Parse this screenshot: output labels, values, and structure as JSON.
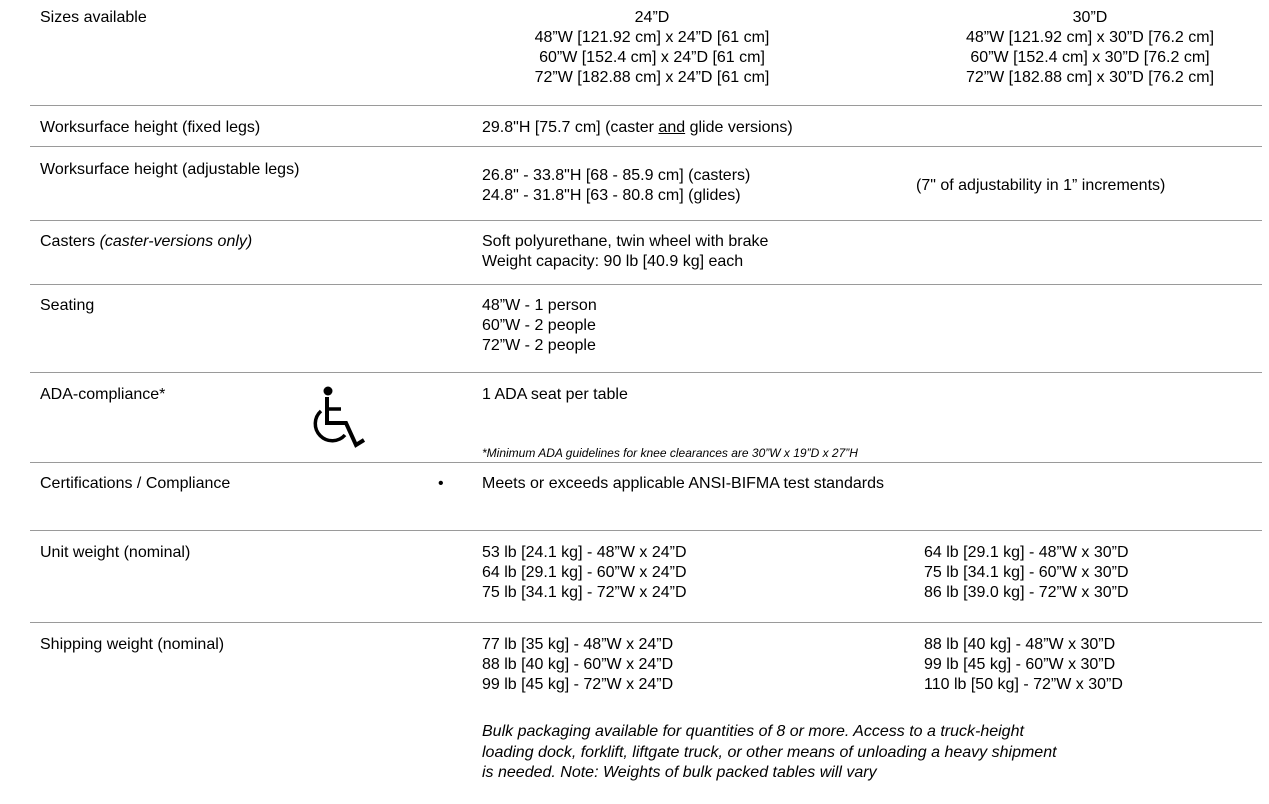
{
  "sizes": {
    "label": "Sizes available",
    "col24_header": "24”D",
    "col30_header": "30”D",
    "col24": [
      "48”W [121.92 cm] x 24”D [61 cm]",
      "60”W [152.4 cm] x 24”D [61 cm]",
      "72”W [182.88 cm] x 24”D [61 cm]"
    ],
    "col30": [
      "48”W [121.92 cm] x 30”D [76.2 cm]",
      "60”W [152.4 cm] x 30”D [76.2 cm]",
      "72”W [182.88 cm] x 30”D [76.2 cm]"
    ]
  },
  "fixed": {
    "label": "Worksurface height (fixed legs)",
    "value_pre": "29.8\"H [75.7 cm] (caster ",
    "value_underline": "and",
    "value_post": " glide versions)"
  },
  "adjustable": {
    "label": "Worksurface height (adjustable legs)",
    "lines": [
      "26.8\" - 33.8\"H [68 - 85.9 cm] (casters)",
      "24.8\" - 31.8\"H [63 - 80.8 cm] (glides)"
    ],
    "note": "(7\" of adjustability in 1” increments)"
  },
  "casters": {
    "label": "Casters",
    "label_note": "(caster-versions only)",
    "lines": [
      "Soft polyurethane, twin wheel with brake",
      "Weight capacity: 90 lb [40.9 kg] each"
    ]
  },
  "seating": {
    "label": "Seating",
    "lines": [
      "48”W - 1 person",
      "60”W - 2 people",
      "72”W - 2 people"
    ]
  },
  "ada": {
    "label": "ADA-compliance*",
    "icon": "wheelchair-icon",
    "value": "1 ADA seat per table",
    "footnote": "*Minimum ADA guidelines for knee clearances are 30”W x 19”D x 27”H"
  },
  "certifications": {
    "label": "Certifications / Compliance",
    "bullet": "•",
    "value": "Meets or exceeds applicable ANSI-BIFMA test standards"
  },
  "unit_weight": {
    "label": "Unit weight (nominal)",
    "col24": [
      "53 lb [24.1 kg] - 48”W x 24”D",
      "64 lb [29.1 kg] - 60”W x 24”D",
      "75 lb [34.1 kg] - 72”W x 24”D"
    ],
    "col30": [
      "64 lb [29.1 kg] - 48”W x 30”D",
      "75 lb [34.1 kg] - 60”W x 30”D",
      "86 lb [39.0 kg] - 72”W x 30”D"
    ]
  },
  "shipping_weight": {
    "label": "Shipping weight (nominal)",
    "col24": [
      "77 lb [35 kg] - 48”W x 24”D",
      "88 lb [40 kg] - 60”W x 24”D",
      "99 lb [45 kg] - 72”W x 24”D"
    ],
    "col30": [
      "88 lb [40 kg] - 48”W x 30”D",
      "99 lb [45 kg] - 60”W x 30”D",
      "110 lb [50 kg] - 72”W x 30”D"
    ],
    "note_lines": [
      "Bulk packaging available for quantities of 8 or more.  Access to a truck-height",
      "loading dock, forklift, liftgate truck, or other means of unloading a heavy shipment",
      "is needed. Note: Weights of bulk packed tables will vary"
    ]
  }
}
